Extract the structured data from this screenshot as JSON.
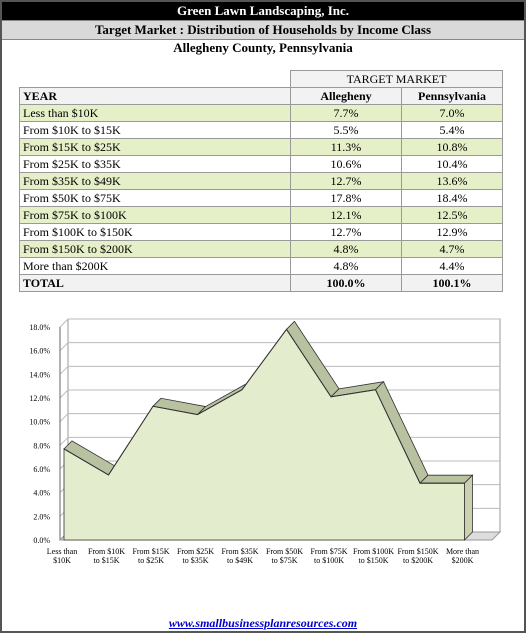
{
  "header": {
    "company": "Green Lawn Landscaping, Inc.",
    "title": "Target Market : Distribution of Households by Income Class",
    "region": "Allegheny County,  Pennsylvania"
  },
  "table": {
    "group_header": "TARGET MARKET",
    "columns": [
      "YEAR",
      "Allegheny",
      "Pennsylvania"
    ],
    "rows": [
      [
        "Less than $10K",
        "7.7%",
        "7.0%"
      ],
      [
        "From $10K to $15K",
        "5.5%",
        "5.4%"
      ],
      [
        "From $15K to $25K",
        "11.3%",
        "10.8%"
      ],
      [
        "From $25K to $35K",
        "10.6%",
        "10.4%"
      ],
      [
        "From $35K to $49K",
        "12.7%",
        "13.6%"
      ],
      [
        "From $50K to $75K",
        "17.8%",
        "18.4%"
      ],
      [
        "From $75K to $100K",
        "12.1%",
        "12.5%"
      ],
      [
        "From $100K to $150K",
        "12.7%",
        "12.9%"
      ],
      [
        "From $150K to $200K",
        "4.8%",
        "4.7%"
      ],
      [
        "More than $200K",
        "4.8%",
        "4.4%"
      ],
      [
        "TOTAL",
        "100.0%",
        "100.1%"
      ]
    ]
  },
  "chart_data": {
    "type": "area",
    "color": "#e4ecce",
    "categories": [
      "Less than $10K",
      "From $10K to $15K",
      "From $15K to $25K",
      "From $25K to $35K",
      "From $35K to $49K",
      "From $50K to $75K",
      "From $75K to $100K",
      "From $100K to $150K",
      "From $150K to $200K",
      "More than $200K"
    ],
    "values": [
      7.7,
      5.5,
      11.3,
      10.6,
      12.7,
      17.8,
      12.1,
      12.7,
      4.8,
      4.8
    ],
    "ylim": [
      0,
      18
    ],
    "yticks": [
      {
        "value": 0,
        "label": "0.0%"
      },
      {
        "value": 2,
        "label": "2.0%"
      },
      {
        "value": 4,
        "label": "4.0%"
      },
      {
        "value": 6,
        "label": "6.0%"
      },
      {
        "value": 8,
        "label": "8.0%"
      },
      {
        "value": 10,
        "label": "10.0%"
      },
      {
        "value": 12,
        "label": "12.0%"
      },
      {
        "value": 14,
        "label": "14.0%"
      },
      {
        "value": 16,
        "label": "16.0%"
      },
      {
        "value": 18,
        "label": "18.0%"
      }
    ],
    "grid": true
  },
  "footer": "www.smallbusinessplanresources.com"
}
